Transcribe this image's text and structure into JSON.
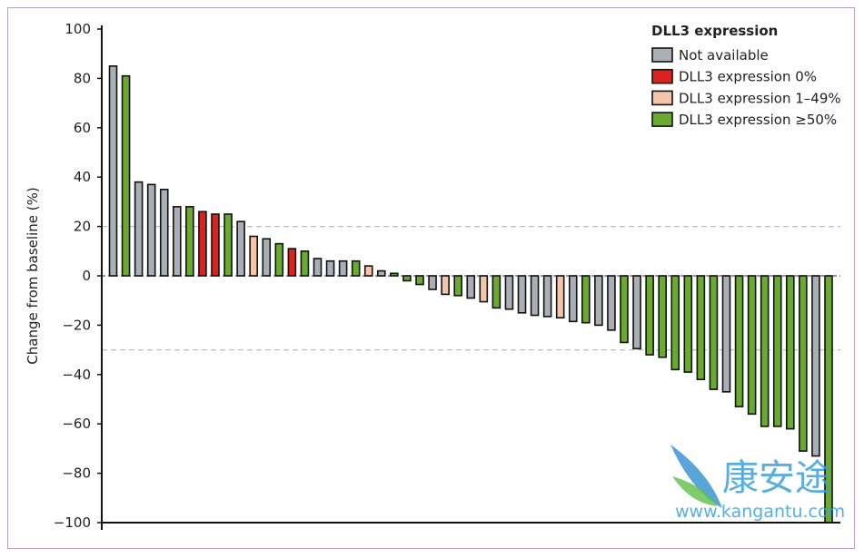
{
  "chart_data": {
    "type": "bar",
    "title": "",
    "xlabel": "",
    "ylabel": "Change from baseline (%)",
    "ylim": [
      -100,
      100
    ],
    "yticks": [
      100,
      80,
      60,
      40,
      20,
      0,
      -20,
      -40,
      -60,
      -80,
      -100
    ],
    "yticks_labels": [
      "100",
      "80",
      "60",
      "40",
      "20",
      "0",
      "−20",
      "−40",
      "−60",
      "−80",
      "−100"
    ],
    "reference_lines": [
      20,
      -30
    ],
    "legend": {
      "title": "DLL3 expression",
      "placement": "top-right",
      "entries": [
        {
          "key": "na",
          "label": "Not available",
          "color": "#a9afb5"
        },
        {
          "key": "zero",
          "label": "DLL3 expression 0%",
          "color": "#d8231f"
        },
        {
          "key": "low",
          "label": "DLL3 expression 1–49%",
          "color": "#f6c4a8"
        },
        {
          "key": "high",
          "label": "DLL3 expression ≥50%",
          "color": "#6aab2e"
        }
      ]
    },
    "bars": [
      {
        "v": 85,
        "c": "na"
      },
      {
        "v": 81,
        "c": "high"
      },
      {
        "v": 38,
        "c": "na"
      },
      {
        "v": 37,
        "c": "na"
      },
      {
        "v": 35,
        "c": "na"
      },
      {
        "v": 28,
        "c": "na"
      },
      {
        "v": 28,
        "c": "high"
      },
      {
        "v": 26,
        "c": "zero"
      },
      {
        "v": 25,
        "c": "zero"
      },
      {
        "v": 25,
        "c": "high"
      },
      {
        "v": 22,
        "c": "na"
      },
      {
        "v": 16,
        "c": "low"
      },
      {
        "v": 15,
        "c": "na"
      },
      {
        "v": 13,
        "c": "high"
      },
      {
        "v": 11,
        "c": "zero"
      },
      {
        "v": 10,
        "c": "high"
      },
      {
        "v": 7,
        "c": "na"
      },
      {
        "v": 6,
        "c": "na"
      },
      {
        "v": 6,
        "c": "na"
      },
      {
        "v": 6,
        "c": "high"
      },
      {
        "v": 4,
        "c": "low"
      },
      {
        "v": 2,
        "c": "na"
      },
      {
        "v": 1,
        "c": "high"
      },
      {
        "v": -2,
        "c": "high"
      },
      {
        "v": -3.5,
        "c": "high"
      },
      {
        "v": -5.5,
        "c": "na"
      },
      {
        "v": -7.5,
        "c": "low"
      },
      {
        "v": -8,
        "c": "high"
      },
      {
        "v": -9,
        "c": "na"
      },
      {
        "v": -10.5,
        "c": "low"
      },
      {
        "v": -13,
        "c": "high"
      },
      {
        "v": -13.5,
        "c": "na"
      },
      {
        "v": -15,
        "c": "na"
      },
      {
        "v": -16,
        "c": "na"
      },
      {
        "v": -16.5,
        "c": "na"
      },
      {
        "v": -17,
        "c": "low"
      },
      {
        "v": -18.5,
        "c": "na"
      },
      {
        "v": -19,
        "c": "high"
      },
      {
        "v": -20,
        "c": "na"
      },
      {
        "v": -22,
        "c": "na"
      },
      {
        "v": -27,
        "c": "high"
      },
      {
        "v": -29.5,
        "c": "na"
      },
      {
        "v": -32,
        "c": "high"
      },
      {
        "v": -33,
        "c": "high"
      },
      {
        "v": -38,
        "c": "high"
      },
      {
        "v": -39,
        "c": "high"
      },
      {
        "v": -42,
        "c": "high"
      },
      {
        "v": -46,
        "c": "high"
      },
      {
        "v": -47,
        "c": "na"
      },
      {
        "v": -53,
        "c": "high"
      },
      {
        "v": -56,
        "c": "high"
      },
      {
        "v": -61,
        "c": "high"
      },
      {
        "v": -61,
        "c": "high"
      },
      {
        "v": -62,
        "c": "high"
      },
      {
        "v": -71,
        "c": "high"
      },
      {
        "v": -73,
        "c": "na"
      },
      {
        "v": -100,
        "c": "high"
      }
    ]
  },
  "watermark": {
    "brand": "康安途",
    "url": "www.kangantu.com"
  }
}
